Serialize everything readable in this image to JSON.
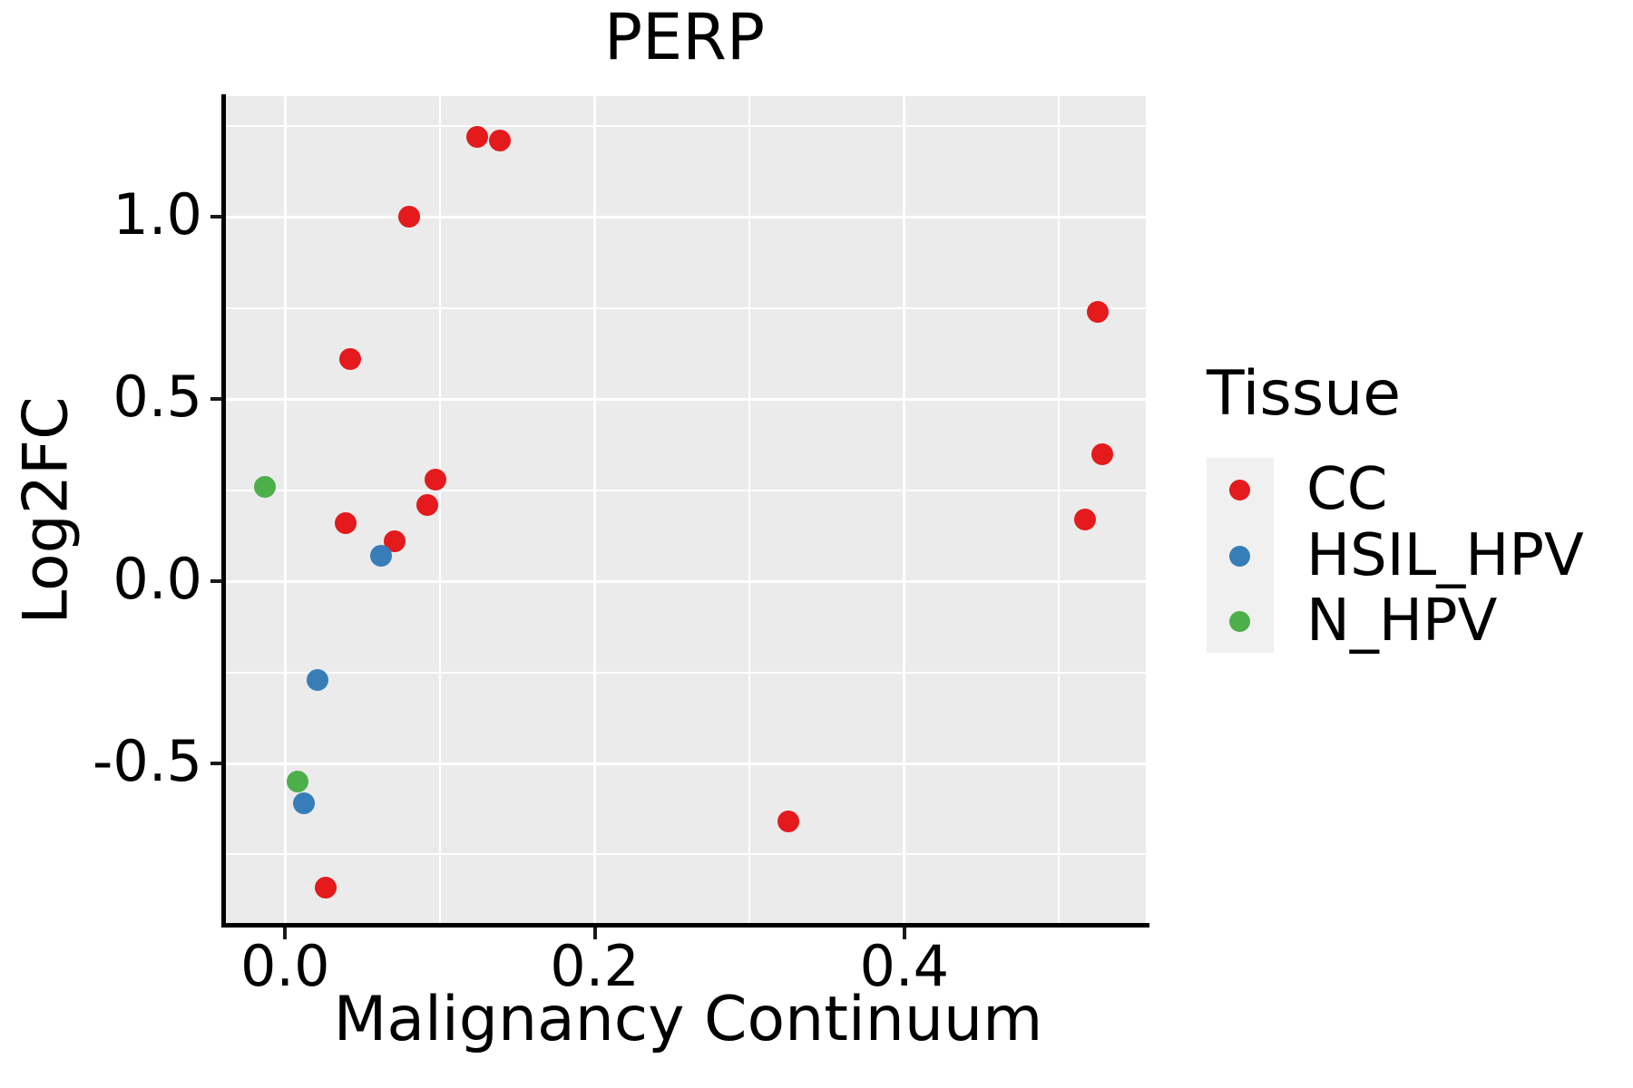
{
  "title": "PERP",
  "legend": {
    "title": "Tissue",
    "items": [
      {
        "label": "CC",
        "color": "#E41A1C"
      },
      {
        "label": "HSIL_HPV",
        "color": "#377EB8"
      },
      {
        "label": "N_HPV",
        "color": "#4DAF4A"
      }
    ]
  },
  "colors": {
    "panel_background": "#EBEBEB",
    "gridline": "#FFFFFF",
    "spine": "#000000",
    "legend_key_background": "#F0F0F0",
    "cc": "#E41A1C",
    "hsil_hpv": "#377EB8",
    "n_hpv": "#4DAF4A"
  },
  "chart_data": {
    "type": "scatter",
    "title": "PERP",
    "xlabel": "Malignancy Continuum",
    "ylabel": "Log2FC",
    "xlim": [
      -0.04,
      0.556
    ],
    "ylim": [
      -0.943,
      1.332
    ],
    "x_major_ticks": [
      0.0,
      0.2,
      0.4
    ],
    "x_tick_labels": [
      "0.0",
      "0.2",
      "0.4"
    ],
    "x_minor_gridlines": [
      0.1,
      0.3,
      0.5
    ],
    "y_major_ticks": [
      1.0,
      0.5,
      0.0,
      -0.5
    ],
    "y_tick_labels": [
      "1.0",
      "0.5",
      "0.0",
      "-0.5"
    ],
    "y_minor_gridlines": [
      1.25,
      0.75,
      0.25,
      -0.25,
      -0.75
    ],
    "grid": "on",
    "legend_position": "right",
    "series": [
      {
        "name": "CC",
        "color": "#E41A1C",
        "points": [
          [
            0.124,
            1.22
          ],
          [
            0.139,
            1.21
          ],
          [
            0.08,
            1.0
          ],
          [
            0.042,
            0.61
          ],
          [
            0.097,
            0.28
          ],
          [
            0.092,
            0.21
          ],
          [
            0.039,
            0.16
          ],
          [
            0.071,
            0.11
          ],
          [
            0.026,
            -0.84
          ],
          [
            0.325,
            -0.66
          ],
          [
            0.525,
            0.74
          ],
          [
            0.528,
            0.35
          ],
          [
            0.517,
            0.17
          ]
        ]
      },
      {
        "name": "HSIL_HPV",
        "color": "#377EB8",
        "points": [
          [
            0.062,
            0.07
          ],
          [
            0.021,
            -0.27
          ],
          [
            0.012,
            -0.61
          ]
        ]
      },
      {
        "name": "N_HPV",
        "color": "#4DAF4A",
        "points": [
          [
            -0.013,
            0.26
          ],
          [
            0.008,
            -0.55
          ]
        ]
      }
    ]
  }
}
